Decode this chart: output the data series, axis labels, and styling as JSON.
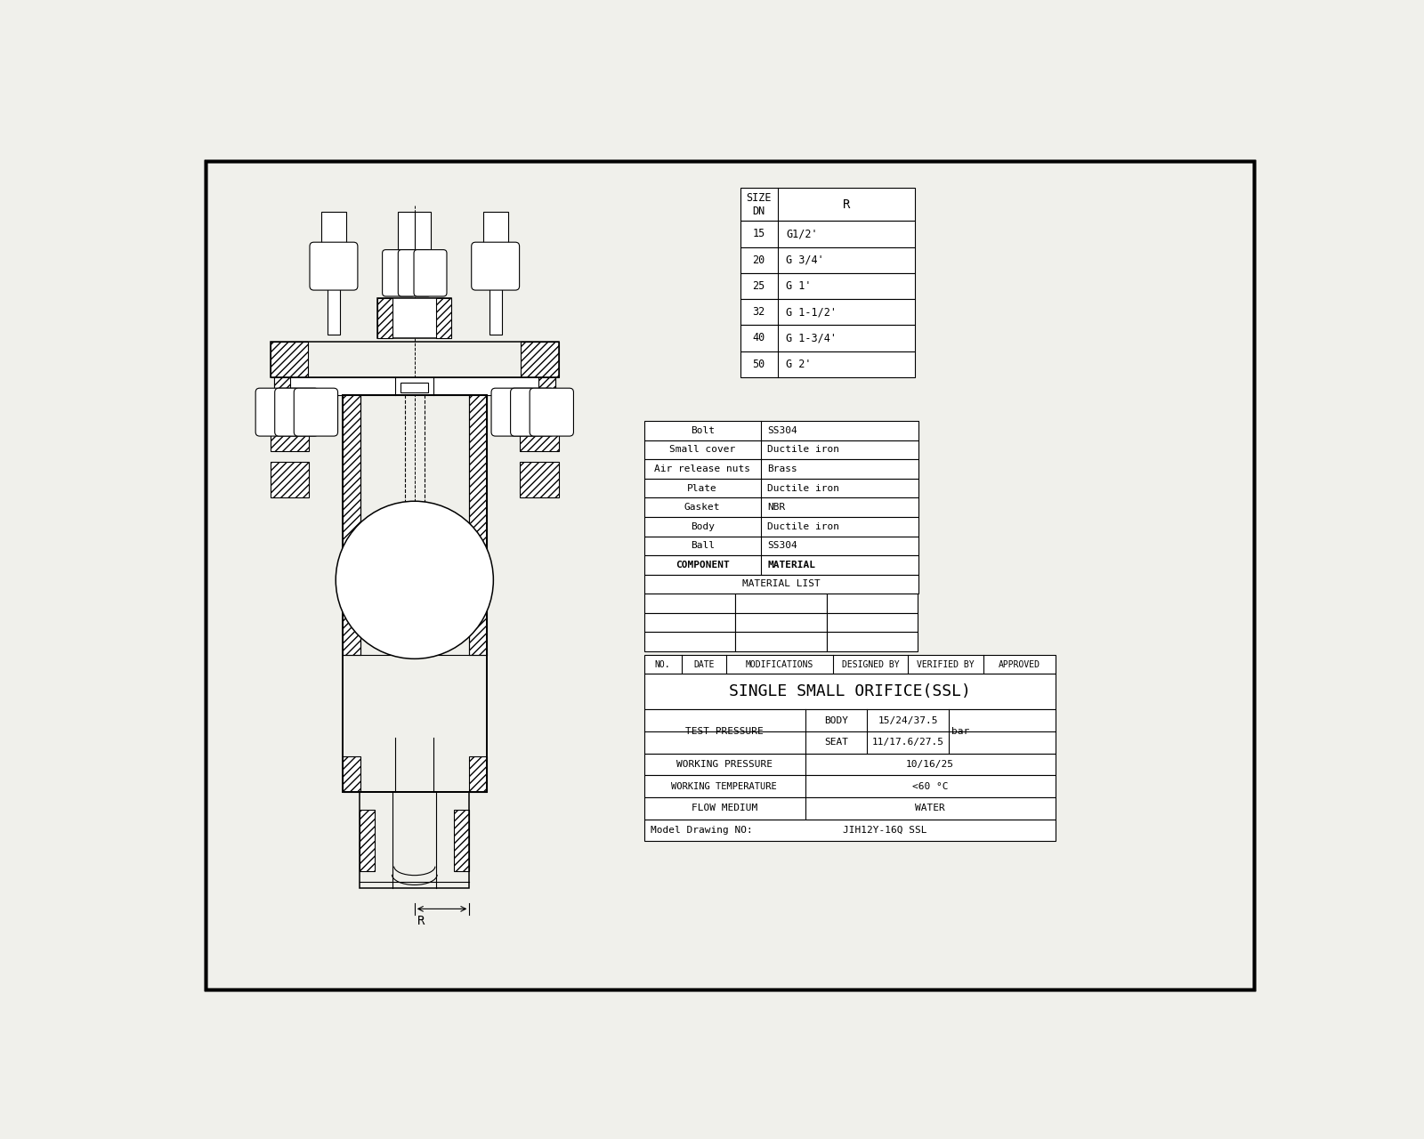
{
  "bg_color": "#f0f0eb",
  "line_color": "#000000",
  "title": "SINGLE SMALL ORIFICE(SSL)",
  "size_table": {
    "rows": [
      [
        "15",
        "G1/2'"
      ],
      [
        "20",
        "G 3/4'"
      ],
      [
        "25",
        "G 1'"
      ],
      [
        "32",
        "G 1-1/2'"
      ],
      [
        "40",
        "G 1-3/4'"
      ],
      [
        "50",
        "G 2'"
      ]
    ]
  },
  "material_list": {
    "rows": [
      [
        "Bolt",
        "SS304"
      ],
      [
        "Small cover",
        "Ductile iron"
      ],
      [
        "Air release nuts",
        "Brass"
      ],
      [
        "Plate",
        "Ductile iron"
      ],
      [
        "Gasket",
        "NBR"
      ],
      [
        "Body",
        "Ductile iron"
      ],
      [
        "Ball",
        "SS304"
      ],
      [
        "COMPONENT",
        "MATERIAL"
      ]
    ],
    "title": "MATERIAL LIST"
  },
  "revision_headers": [
    "NO.",
    "DATE",
    "MODIFICATIONS",
    "DESIGNED BY",
    "VERIFIED BY",
    "APPROVED"
  ],
  "font_size_small": 7.5,
  "font_size_medium": 9,
  "font_size_large": 13
}
